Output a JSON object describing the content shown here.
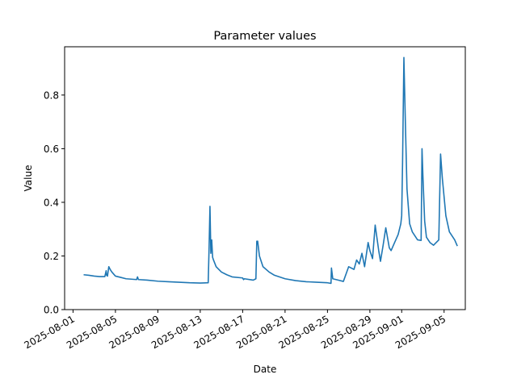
{
  "chart_data": {
    "type": "line",
    "title": "Parameter values",
    "xlabel": "Date",
    "ylabel": "Value",
    "xlim": [
      "2025-07-31T05:00",
      "2025-09-07T00:00"
    ],
    "ylim": [
      0,
      0.98
    ],
    "grid": false,
    "legend": "none",
    "x_ticks": [
      "2025-08-01",
      "2025-08-05",
      "2025-08-09",
      "2025-08-13",
      "2025-08-17",
      "2025-08-21",
      "2025-08-25",
      "2025-08-29",
      "2025-09-01",
      "2025-09-05"
    ],
    "y_ticks": [
      0.0,
      0.2,
      0.4,
      0.6,
      0.8
    ],
    "y_tick_labels": [
      "0.0",
      "0.2",
      "0.4",
      "0.6",
      "0.8"
    ],
    "series": [
      {
        "color": "#1f77b4",
        "x": [
          "2025-08-02T00:00",
          "2025-08-02T12:00",
          "2025-08-03T00:00",
          "2025-08-03T12:00",
          "2025-08-04T00:00",
          "2025-08-04T03:00",
          "2025-08-04T04:00",
          "2025-08-04T06:00",
          "2025-08-04T09:00",
          "2025-08-04T12:00",
          "2025-08-04T14:00",
          "2025-08-04T16:00",
          "2025-08-05T00:00",
          "2025-08-05T12:00",
          "2025-08-06T00:00",
          "2025-08-07T00:00",
          "2025-08-07T02:00",
          "2025-08-07T04:00",
          "2025-08-08T00:00",
          "2025-08-09T00:00",
          "2025-08-10T00:00",
          "2025-08-11T00:00",
          "2025-08-12T00:00",
          "2025-08-13T00:00",
          "2025-08-13T18:00",
          "2025-08-13T20:00",
          "2025-08-13T22:00",
          "2025-08-14T00:00",
          "2025-08-14T02:00",
          "2025-08-14T04:00",
          "2025-08-14T06:00",
          "2025-08-14T12:00",
          "2025-08-15T00:00",
          "2025-08-15T12:00",
          "2025-08-16T00:00",
          "2025-08-17T00:00",
          "2025-08-17T02:00",
          "2025-08-17T04:00",
          "2025-08-18T00:00",
          "2025-08-18T06:00",
          "2025-08-18T08:00",
          "2025-08-18T10:00",
          "2025-08-18T14:00",
          "2025-08-18T22:00",
          "2025-08-19T12:00",
          "2025-08-20T00:00",
          "2025-08-21T00:00",
          "2025-08-22T00:00",
          "2025-08-23T00:00",
          "2025-08-24T00:00",
          "2025-08-25T00:00",
          "2025-08-25T08:00",
          "2025-08-25T09:00",
          "2025-08-25T12:00",
          "2025-08-26T00:00",
          "2025-08-26T12:00",
          "2025-08-27T00:00",
          "2025-08-27T12:00",
          "2025-08-27T18:00",
          "2025-08-28T00:00",
          "2025-08-28T06:00",
          "2025-08-28T12:00",
          "2025-08-28T20:00",
          "2025-08-29T00:00",
          "2025-08-29T06:00",
          "2025-08-29T12:00",
          "2025-08-29T20:00",
          "2025-08-30T00:00",
          "2025-08-30T06:00",
          "2025-08-30T12:00",
          "2025-08-30T20:00",
          "2025-08-31T00:00",
          "2025-08-31T08:00",
          "2025-08-31T16:00",
          "2025-08-31T22:00",
          "2025-09-01T00:00",
          "2025-09-01T02:00",
          "2025-09-01T05:00",
          "2025-09-01T08:00",
          "2025-09-01T12:00",
          "2025-09-01T18:00",
          "2025-09-02T00:00",
          "2025-09-02T12:00",
          "2025-09-02T20:00",
          "2025-09-02T22:00",
          "2025-09-03T00:00",
          "2025-09-03T04:00",
          "2025-09-03T08:00",
          "2025-09-03T16:00",
          "2025-09-04T00:00",
          "2025-09-04T12:00",
          "2025-09-04T16:00",
          "2025-09-04T20:00",
          "2025-09-05T04:00",
          "2025-09-05T12:00",
          "2025-09-06T00:00",
          "2025-09-06T06:00"
        ],
        "y": [
          0.13,
          0.128,
          0.125,
          0.123,
          0.123,
          0.145,
          0.128,
          0.125,
          0.16,
          0.15,
          0.145,
          0.14,
          0.125,
          0.12,
          0.115,
          0.112,
          0.122,
          0.112,
          0.11,
          0.106,
          0.104,
          0.102,
          0.1,
          0.099,
          0.1,
          0.23,
          0.385,
          0.21,
          0.26,
          0.195,
          0.185,
          0.16,
          0.14,
          0.13,
          0.122,
          0.118,
          0.112,
          0.115,
          0.11,
          0.115,
          0.255,
          0.255,
          0.2,
          0.16,
          0.14,
          0.128,
          0.115,
          0.108,
          0.104,
          0.102,
          0.1,
          0.098,
          0.155,
          0.115,
          0.11,
          0.105,
          0.16,
          0.15,
          0.185,
          0.17,
          0.21,
          0.16,
          0.25,
          0.22,
          0.19,
          0.315,
          0.22,
          0.18,
          0.24,
          0.305,
          0.23,
          0.22,
          0.25,
          0.28,
          0.32,
          0.35,
          0.55,
          0.94,
          0.72,
          0.45,
          0.32,
          0.29,
          0.26,
          0.258,
          0.6,
          0.5,
          0.33,
          0.27,
          0.25,
          0.24,
          0.26,
          0.58,
          0.49,
          0.35,
          0.29,
          0.26,
          0.237
        ]
      }
    ]
  }
}
